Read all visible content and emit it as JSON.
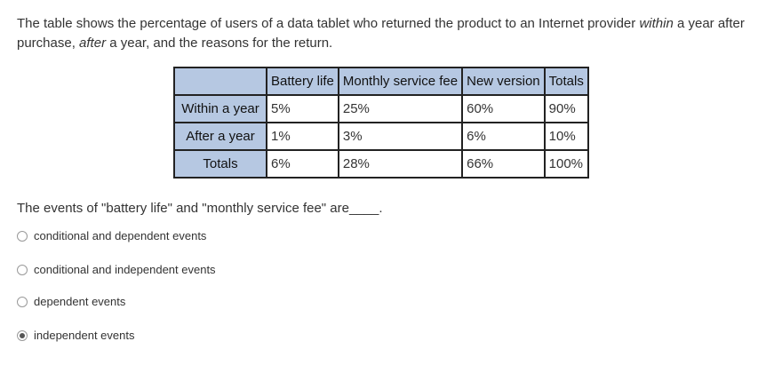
{
  "intro": [
    "The table shows the percentage of users of a data tablet who returned the product to an Internet provider ",
    "within",
    " a year after purchase, ",
    "after",
    " a year, and the reasons for the return."
  ],
  "table": {
    "header": [
      "Battery life",
      "Monthly service fee",
      "New version",
      "Totals"
    ],
    "rows": [
      {
        "label": "Within a year",
        "cells": [
          "5%",
          "25%",
          "60%",
          "90%"
        ]
      },
      {
        "label": "After a year",
        "cells": [
          "1%",
          "3%",
          "6%",
          "10%"
        ]
      },
      {
        "label": "Totals",
        "cells": [
          "6%",
          "28%",
          "66%",
          "100%"
        ]
      }
    ]
  },
  "question": "The events of \"battery life\" and \"monthly service fee\" are____.",
  "options": [
    "conditional and dependent events",
    "conditional and independent events",
    "dependent events",
    "independent events"
  ],
  "selected": 3
}
